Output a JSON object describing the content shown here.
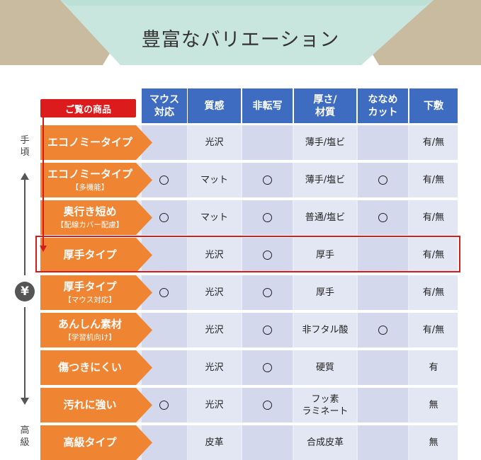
{
  "title": "豊富なバリエーション",
  "colors": {
    "header_blue": "#3d6cc0",
    "label_orange": "#ef8533",
    "highlight_red": "#d71a1a",
    "banner_mint": "#c9e6de",
    "banner_tan": "#c8bb9f"
  },
  "corner_button": "ご覧の商品",
  "side": {
    "top": "手頃",
    "bottom": "高級",
    "yen": "¥"
  },
  "columns": [
    "マウス\n対応",
    "質感",
    "非転写",
    "厚さ/\n材質",
    "ななめ\nカット",
    "下敷"
  ],
  "rows": [
    {
      "name": "エコノミータイプ",
      "sub": "",
      "cells": [
        "",
        "光沢",
        "",
        "薄手/塩ビ",
        "",
        "有/無"
      ],
      "highlighted": false
    },
    {
      "name": "エコノミータイプ",
      "sub": "【多機能】",
      "cells": [
        "○",
        "マット",
        "○",
        "薄手/塩ビ",
        "○",
        "有/無"
      ],
      "highlighted": false
    },
    {
      "name": "奥行き短め",
      "sub": "【配線カバー配慮】",
      "cells": [
        "○",
        "マット",
        "○",
        "普通/塩ビ",
        "○",
        "有/無"
      ],
      "highlighted": false
    },
    {
      "name": "厚手タイプ",
      "sub": "",
      "cells": [
        "",
        "光沢",
        "○",
        "厚手",
        "",
        "有/無"
      ],
      "highlighted": true
    },
    {
      "name": "厚手タイプ",
      "sub": "【マウス対応】",
      "cells": [
        "○",
        "光沢",
        "○",
        "厚手",
        "",
        "有/無"
      ],
      "highlighted": false
    },
    {
      "name": "あんしん素材",
      "sub": "【学習机向け】",
      "cells": [
        "",
        "光沢",
        "○",
        "非フタル酸",
        "○",
        "有/無"
      ],
      "highlighted": false
    },
    {
      "name": "傷つきにくい",
      "sub": "",
      "cells": [
        "",
        "光沢",
        "○",
        "硬質",
        "",
        "有"
      ],
      "highlighted": false
    },
    {
      "name": "汚れに強い",
      "sub": "",
      "cells": [
        "○",
        "光沢",
        "○",
        "フッ素\nラミネート",
        "",
        "無"
      ],
      "highlighted": false
    },
    {
      "name": "高級タイプ",
      "sub": "",
      "cells": [
        "",
        "皮革",
        "",
        "合成皮革",
        "",
        "無"
      ],
      "highlighted": false
    }
  ]
}
